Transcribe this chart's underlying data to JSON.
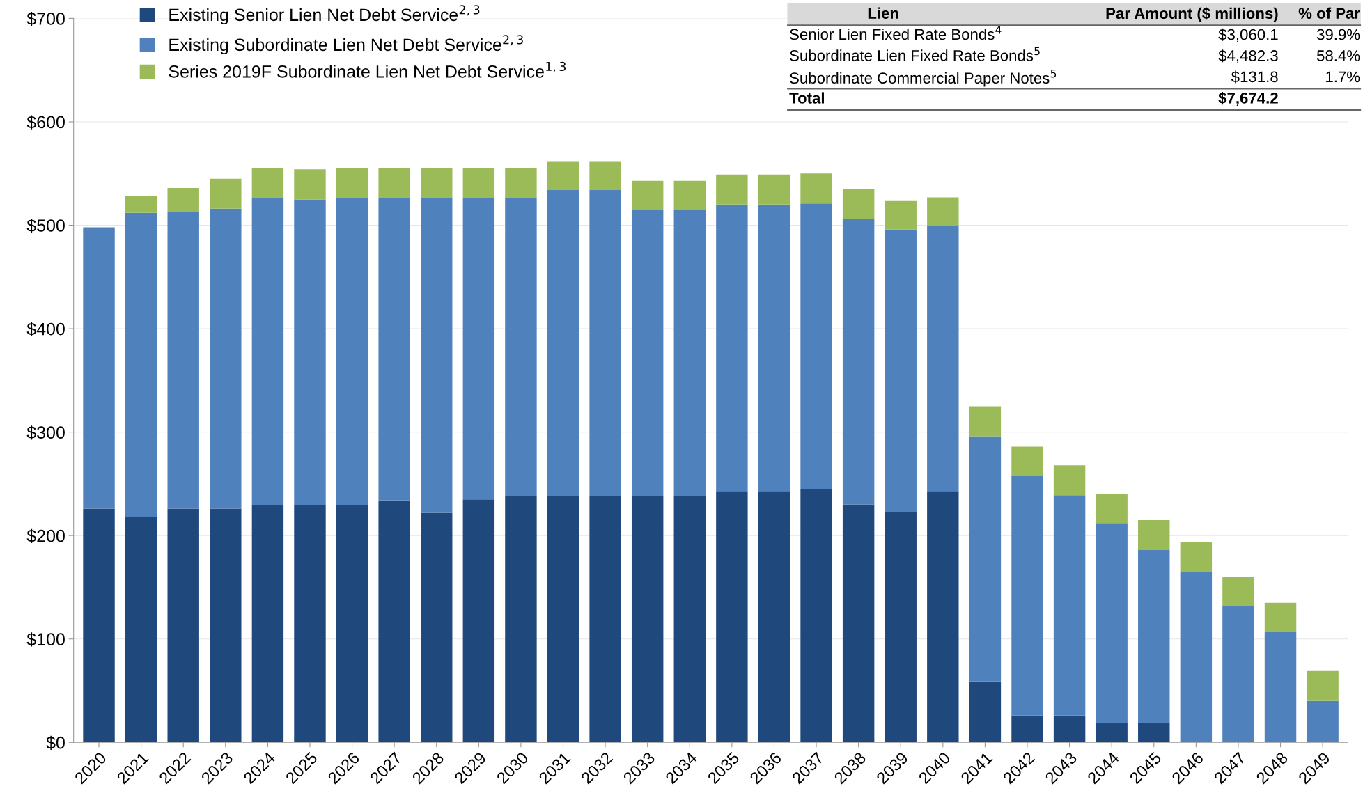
{
  "chart_data": {
    "type": "bar",
    "stacked": true,
    "categories": [
      "2020",
      "2021",
      "2022",
      "2023",
      "2024",
      "2025",
      "2026",
      "2027",
      "2028",
      "2029",
      "2030",
      "2031",
      "2032",
      "2033",
      "2034",
      "2035",
      "2036",
      "2037",
      "2038",
      "2039",
      "2040",
      "2041",
      "2042",
      "2043",
      "2044",
      "2045",
      "2046",
      "2047",
      "2048",
      "2049"
    ],
    "series": [
      {
        "name": "Existing Senior Lien Net Debt Service$^{2,3}$",
        "color": "#1f497d",
        "values": [
          226,
          218,
          226,
          226,
          229,
          229,
          229,
          234,
          222,
          235,
          238,
          238,
          238,
          238,
          238,
          243,
          243,
          245,
          230,
          223,
          243,
          59,
          26,
          26,
          19,
          19,
          0,
          0,
          0,
          0
        ]
      },
      {
        "name": "Existing Subordinate Lien Net Debt Service$^{2,3}$",
        "color": "#4f81bd",
        "values": [
          272,
          294,
          287,
          290,
          297,
          296,
          297,
          292,
          304,
          291,
          288,
          296,
          296,
          277,
          277,
          277,
          277,
          276,
          276,
          273,
          256,
          237,
          232,
          213,
          193,
          167,
          165,
          132,
          107,
          40
        ]
      },
      {
        "name": "Series 2019F Subordinate Lien Net Debt Service$^{1,3}$",
        "color": "#9bbb59",
        "values": [
          0,
          16,
          23,
          29,
          29,
          29,
          29,
          29,
          29,
          29,
          29,
          28,
          28,
          28,
          28,
          29,
          29,
          29,
          29,
          28,
          28,
          29,
          28,
          29,
          28,
          29,
          29,
          28,
          28,
          29
        ]
      }
    ],
    "ylim": [
      0,
      700
    ],
    "yticks": [
      {
        "value": 0,
        "label": "$0"
      },
      {
        "value": 100,
        "label": "$100"
      },
      {
        "value": 200,
        "label": "$200"
      },
      {
        "value": 300,
        "label": "$300"
      },
      {
        "value": 400,
        "label": "$400"
      },
      {
        "value": 500,
        "label": "$500"
      },
      {
        "value": 600,
        "label": "$600"
      },
      {
        "value": 700,
        "label": "$700"
      }
    ],
    "grid": "y",
    "legend": "top left",
    "annotations": [
      "Lien",
      "Par Amount ($ millions)",
      "% of Par",
      "Senior Lien Fixed Rate Bonds$^{4}$",
      "$3,060.1",
      "39.9%",
      "Subordinate Lien Fixed Rate Bonds$^{5}$",
      "$4,482.3",
      "58.4%",
      "Subordinate Commercial Paper Notes$^{5}$",
      "$131.8",
      "1.7%",
      "Total",
      "$7,674.2",
      null
    ]
  }
}
